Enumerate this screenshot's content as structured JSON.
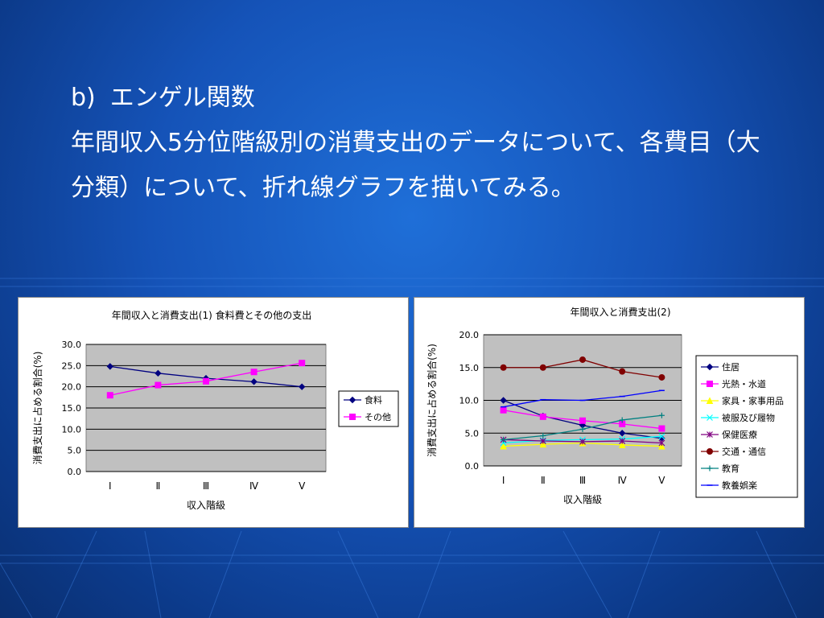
{
  "slide": {
    "heading_label": "b)",
    "heading_text": "エンゲル関数",
    "paragraph": "年間収入5分位階級別の消費支出のデータについて、各費目（大分類）について、折れ線グラフを描いてみる。"
  },
  "chart_data": [
    {
      "type": "line",
      "title": "年間収入と消費支出(1)  食料費とその他の支出",
      "xlabel": "収入階級",
      "ylabel": "消費支出に占める割合(%)",
      "categories": [
        "Ⅰ",
        "Ⅱ",
        "Ⅲ",
        "Ⅳ",
        "Ⅴ"
      ],
      "ylim": [
        0,
        30
      ],
      "yticks": [
        "0.0",
        "5.0",
        "10.0",
        "15.0",
        "20.0",
        "25.0",
        "30.0"
      ],
      "grid": true,
      "plot_bg": "#c0c0c0",
      "legend": "right",
      "series": [
        {
          "name": "食料",
          "values": [
            24.8,
            23.2,
            22.0,
            21.2,
            20.0
          ],
          "color": "#000080",
          "marker": "diamond"
        },
        {
          "name": "その他",
          "values": [
            18.0,
            20.4,
            21.3,
            23.5,
            25.6
          ],
          "color": "#ff00ff",
          "marker": "square"
        }
      ]
    },
    {
      "type": "line",
      "title": "年間収入と消費支出(2)",
      "xlabel": "収入階級",
      "ylabel": "消費支出に占める割合(%)",
      "categories": [
        "Ⅰ",
        "Ⅱ",
        "Ⅲ",
        "Ⅳ",
        "Ⅴ"
      ],
      "ylim": [
        0,
        20
      ],
      "yticks": [
        "0.0",
        "5.0",
        "10.0",
        "15.0",
        "20.0"
      ],
      "grid": true,
      "plot_bg": "#c0c0c0",
      "legend": "right",
      "series": [
        {
          "name": "住居",
          "values": [
            10.0,
            7.6,
            6.2,
            5.0,
            4.2
          ],
          "color": "#000080",
          "marker": "diamond"
        },
        {
          "name": "光熱・水道",
          "values": [
            8.5,
            7.5,
            6.9,
            6.4,
            5.7
          ],
          "color": "#ff00ff",
          "marker": "square"
        },
        {
          "name": "家具・家事用品",
          "values": [
            3.0,
            3.3,
            3.5,
            3.2,
            3.0
          ],
          "color": "#ffff00",
          "marker": "triangle"
        },
        {
          "name": "被服及び履物",
          "values": [
            3.5,
            3.9,
            4.0,
            4.1,
            4.5
          ],
          "color": "#00ffff",
          "marker": "x"
        },
        {
          "name": "保健医療",
          "values": [
            4.0,
            3.8,
            3.7,
            3.8,
            3.5
          ],
          "color": "#800080",
          "marker": "star"
        },
        {
          "name": "交通・通信",
          "values": [
            15.0,
            15.0,
            16.2,
            14.4,
            13.5
          ],
          "color": "#800000",
          "marker": "circle"
        },
        {
          "name": "教育",
          "values": [
            4.0,
            4.6,
            5.6,
            7.0,
            7.7
          ],
          "color": "#008080",
          "marker": "plus"
        },
        {
          "name": "教養娯楽",
          "values": [
            9.0,
            10.1,
            10.0,
            10.6,
            11.5
          ],
          "color": "#0000ff",
          "marker": "dash"
        }
      ]
    }
  ]
}
